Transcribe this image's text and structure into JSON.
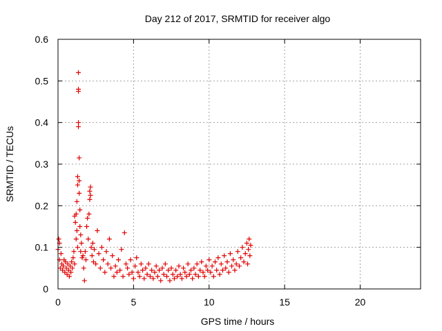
{
  "chart_data": {
    "type": "scatter",
    "title": "Day 212 of 2017, SRMTID for receiver algo",
    "xlabel": "GPS time / hours",
    "ylabel": "SRMTID / TECUs",
    "xlim": [
      0,
      24
    ],
    "ylim": [
      0,
      0.6
    ],
    "xticks": [
      0,
      5,
      10,
      15,
      20
    ],
    "xtick_labels": [
      "0",
      "5",
      "10",
      "15",
      "20"
    ],
    "yticks": [
      0,
      0.1,
      0.2,
      0.3,
      0.4,
      0.5,
      0.6
    ],
    "ytick_labels": [
      "0",
      "0.1",
      "0.2",
      "0.3",
      "0.4",
      "0.5",
      "0.6"
    ],
    "grid": true,
    "series": [
      {
        "name": "SRMTID",
        "color": "#e00000",
        "marker": "plus",
        "points": [
          [
            0.0,
            0.095
          ],
          [
            0.05,
            0.12
          ],
          [
            0.1,
            0.11
          ],
          [
            0.1,
            0.07
          ],
          [
            0.15,
            0.05
          ],
          [
            0.2,
            0.085
          ],
          [
            0.25,
            0.06
          ],
          [
            0.3,
            0.045
          ],
          [
            0.35,
            0.055
          ],
          [
            0.4,
            0.07
          ],
          [
            0.45,
            0.04
          ],
          [
            0.5,
            0.065
          ],
          [
            0.55,
            0.05
          ],
          [
            0.6,
            0.035
          ],
          [
            0.65,
            0.06
          ],
          [
            0.7,
            0.045
          ],
          [
            0.75,
            0.03
          ],
          [
            0.8,
            0.055
          ],
          [
            0.85,
            0.04
          ],
          [
            0.9,
            0.065
          ],
          [
            0.95,
            0.05
          ],
          [
            1.0,
            0.075
          ],
          [
            1.05,
            0.09
          ],
          [
            1.1,
            0.06
          ],
          [
            1.1,
            0.175
          ],
          [
            1.15,
            0.16
          ],
          [
            1.2,
            0.12
          ],
          [
            1.2,
            0.18
          ],
          [
            1.25,
            0.14
          ],
          [
            1.25,
            0.21
          ],
          [
            1.3,
            0.25
          ],
          [
            1.3,
            0.27
          ],
          [
            1.3,
            0.1
          ],
          [
            1.35,
            0.48
          ],
          [
            1.35,
            0.475
          ],
          [
            1.35,
            0.52
          ],
          [
            1.35,
            0.4
          ],
          [
            1.35,
            0.39
          ],
          [
            1.4,
            0.315
          ],
          [
            1.4,
            0.26
          ],
          [
            1.4,
            0.23
          ],
          [
            1.45,
            0.19
          ],
          [
            1.45,
            0.15
          ],
          [
            1.5,
            0.13
          ],
          [
            1.5,
            0.09
          ],
          [
            1.55,
            0.11
          ],
          [
            1.6,
            0.075
          ],
          [
            1.65,
            0.08
          ],
          [
            1.7,
            0.05
          ],
          [
            1.75,
            0.02
          ],
          [
            1.8,
            0.09
          ],
          [
            1.85,
            0.07
          ],
          [
            1.9,
            0.15
          ],
          [
            1.95,
            0.17
          ],
          [
            2.0,
            0.12
          ],
          [
            2.05,
            0.18
          ],
          [
            2.1,
            0.215
          ],
          [
            2.1,
            0.235
          ],
          [
            2.15,
            0.245
          ],
          [
            2.15,
            0.225
          ],
          [
            2.2,
            0.1
          ],
          [
            2.25,
            0.08
          ],
          [
            2.3,
            0.11
          ],
          [
            2.35,
            0.065
          ],
          [
            2.4,
            0.095
          ],
          [
            2.5,
            0.06
          ],
          [
            2.6,
            0.14
          ],
          [
            2.7,
            0.085
          ],
          [
            2.8,
            0.05
          ],
          [
            2.9,
            0.1
          ],
          [
            3.0,
            0.07
          ],
          [
            3.1,
            0.04
          ],
          [
            3.2,
            0.09
          ],
          [
            3.3,
            0.06
          ],
          [
            3.4,
            0.12
          ],
          [
            3.5,
            0.05
          ],
          [
            3.6,
            0.08
          ],
          [
            3.7,
            0.03
          ],
          [
            3.8,
            0.055
          ],
          [
            3.9,
            0.04
          ],
          [
            4.0,
            0.07
          ],
          [
            4.1,
            0.045
          ],
          [
            4.2,
            0.095
          ],
          [
            4.3,
            0.03
          ],
          [
            4.4,
            0.135
          ],
          [
            4.5,
            0.06
          ],
          [
            4.6,
            0.05
          ],
          [
            4.7,
            0.035
          ],
          [
            4.8,
            0.07
          ],
          [
            4.9,
            0.04
          ],
          [
            5.0,
            0.025
          ],
          [
            5.1,
            0.055
          ],
          [
            5.2,
            0.075
          ],
          [
            5.3,
            0.04
          ],
          [
            5.4,
            0.03
          ],
          [
            5.5,
            0.06
          ],
          [
            5.6,
            0.045
          ],
          [
            5.7,
            0.025
          ],
          [
            5.8,
            0.05
          ],
          [
            5.9,
            0.035
          ],
          [
            6.0,
            0.06
          ],
          [
            6.1,
            0.03
          ],
          [
            6.2,
            0.045
          ],
          [
            6.3,
            0.025
          ],
          [
            6.4,
            0.04
          ],
          [
            6.5,
            0.055
          ],
          [
            6.6,
            0.03
          ],
          [
            6.7,
            0.045
          ],
          [
            6.8,
            0.02
          ],
          [
            6.9,
            0.05
          ],
          [
            7.0,
            0.035
          ],
          [
            7.1,
            0.06
          ],
          [
            7.2,
            0.03
          ],
          [
            7.3,
            0.045
          ],
          [
            7.4,
            0.02
          ],
          [
            7.5,
            0.05
          ],
          [
            7.6,
            0.035
          ],
          [
            7.7,
            0.025
          ],
          [
            7.8,
            0.045
          ],
          [
            7.9,
            0.03
          ],
          [
            8.0,
            0.055
          ],
          [
            8.1,
            0.035
          ],
          [
            8.2,
            0.025
          ],
          [
            8.3,
            0.05
          ],
          [
            8.4,
            0.04
          ],
          [
            8.5,
            0.03
          ],
          [
            8.6,
            0.06
          ],
          [
            8.7,
            0.035
          ],
          [
            8.8,
            0.045
          ],
          [
            8.9,
            0.025
          ],
          [
            9.0,
            0.05
          ],
          [
            9.1,
            0.035
          ],
          [
            9.2,
            0.06
          ],
          [
            9.3,
            0.03
          ],
          [
            9.4,
            0.045
          ],
          [
            9.5,
            0.065
          ],
          [
            9.6,
            0.04
          ],
          [
            9.7,
            0.03
          ],
          [
            9.8,
            0.055
          ],
          [
            9.9,
            0.045
          ],
          [
            10.0,
            0.07
          ],
          [
            10.1,
            0.04
          ],
          [
            10.2,
            0.055
          ],
          [
            10.3,
            0.03
          ],
          [
            10.4,
            0.065
          ],
          [
            10.5,
            0.045
          ],
          [
            10.6,
            0.075
          ],
          [
            10.7,
            0.035
          ],
          [
            10.8,
            0.06
          ],
          [
            10.9,
            0.045
          ],
          [
            11.0,
            0.08
          ],
          [
            11.1,
            0.05
          ],
          [
            11.2,
            0.065
          ],
          [
            11.3,
            0.04
          ],
          [
            11.4,
            0.085
          ],
          [
            11.5,
            0.055
          ],
          [
            11.6,
            0.07
          ],
          [
            11.7,
            0.045
          ],
          [
            11.8,
            0.06
          ],
          [
            11.9,
            0.09
          ],
          [
            12.0,
            0.055
          ],
          [
            12.1,
            0.075
          ],
          [
            12.2,
            0.1
          ],
          [
            12.3,
            0.065
          ],
          [
            12.4,
            0.085
          ],
          [
            12.5,
            0.11
          ],
          [
            12.55,
            0.06
          ],
          [
            12.6,
            0.095
          ],
          [
            12.65,
            0.12
          ],
          [
            12.7,
            0.08
          ],
          [
            12.75,
            0.105
          ]
        ]
      }
    ]
  }
}
